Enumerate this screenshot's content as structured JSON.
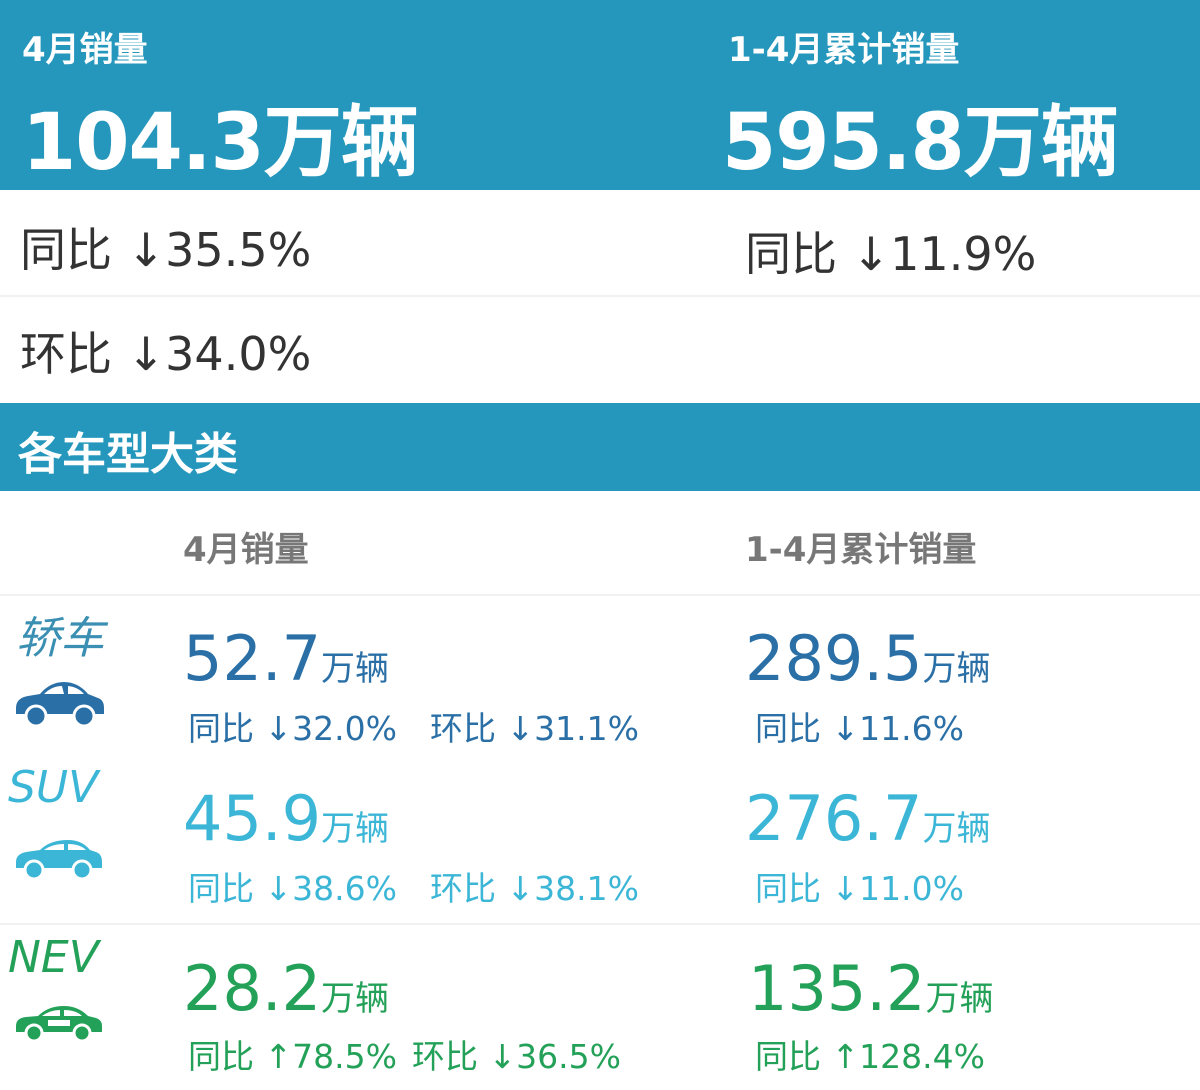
{
  "summary": {
    "month": {
      "label": "4月销量",
      "value": "104.3万辆",
      "yoy": "同比 ↓35.5%",
      "mom": "环比 ↓34.0%"
    },
    "ytd": {
      "label": "1-4月累计销量",
      "value": "595.8万辆",
      "yoy": "同比 ↓11.9%"
    }
  },
  "section": {
    "title": "各车型大类"
  },
  "columns": {
    "month": "4月销量",
    "ytd": "1-4月累计销量"
  },
  "categories": [
    {
      "name": "轿车",
      "color": "#2a6fa6",
      "icon": "sedan-car-icon",
      "month_value": "52.7",
      "month_unit": "万辆",
      "month_yoy": "同比 ↓32.0%",
      "month_mom": "环比 ↓31.1%",
      "ytd_value": "289.5",
      "ytd_unit": "万辆",
      "ytd_yoy": "同比 ↓11.6%"
    },
    {
      "name": "SUV",
      "color": "#3cb6d6",
      "icon": "suv-car-icon",
      "month_value": "45.9",
      "month_unit": "万辆",
      "month_yoy": "同比 ↓38.6%",
      "month_mom": "环比 ↓38.1%",
      "ytd_value": "276.7",
      "ytd_unit": "万辆",
      "ytd_yoy": "同比 ↓11.0%"
    },
    {
      "name": "NEV",
      "color": "#24a158",
      "icon": "electric-car-icon",
      "month_value": "28.2",
      "month_unit": "万辆",
      "month_yoy": "同比 ↑78.5%",
      "month_mom": "环比 ↓36.5%",
      "ytd_value": "135.2",
      "ytd_unit": "万辆",
      "ytd_yoy": "同比 ↑128.4%"
    }
  ]
}
